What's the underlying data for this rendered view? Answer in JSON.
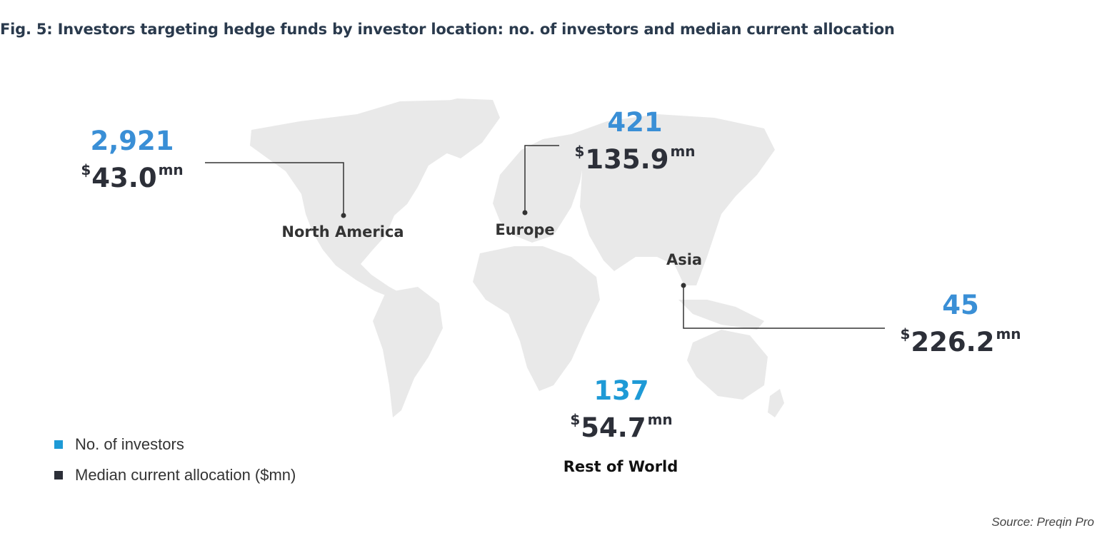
{
  "title": "Fig. 5: Investors targeting hedge funds by investor location: no. of investors and median current allocation",
  "colors": {
    "count": "#3a8fd6",
    "count_rest": "#1e9ad6",
    "allocation": "#2c2f38",
    "land": "#e9e9e9",
    "legend_count": "#1e9ad6",
    "legend_alloc": "#2c2f38"
  },
  "currency_prefix": "$",
  "unit_suffix": "mn",
  "regions": [
    {
      "id": "north-america",
      "name": "North America",
      "count": "2,921",
      "allocation": "43.0"
    },
    {
      "id": "europe",
      "name": "Europe",
      "count": "421",
      "allocation": "135.9"
    },
    {
      "id": "asia",
      "name": "Asia",
      "count": "45",
      "allocation": "226.2"
    },
    {
      "id": "rest-of-world",
      "name": "Rest of World",
      "count": "137",
      "allocation": "54.7"
    }
  ],
  "legend": [
    {
      "label": "No. of investors",
      "color": "#1e9ad6"
    },
    {
      "label": "Median current allocation ($mn)",
      "color": "#2c2f38"
    }
  ],
  "source": "Source: Preqin Pro"
}
